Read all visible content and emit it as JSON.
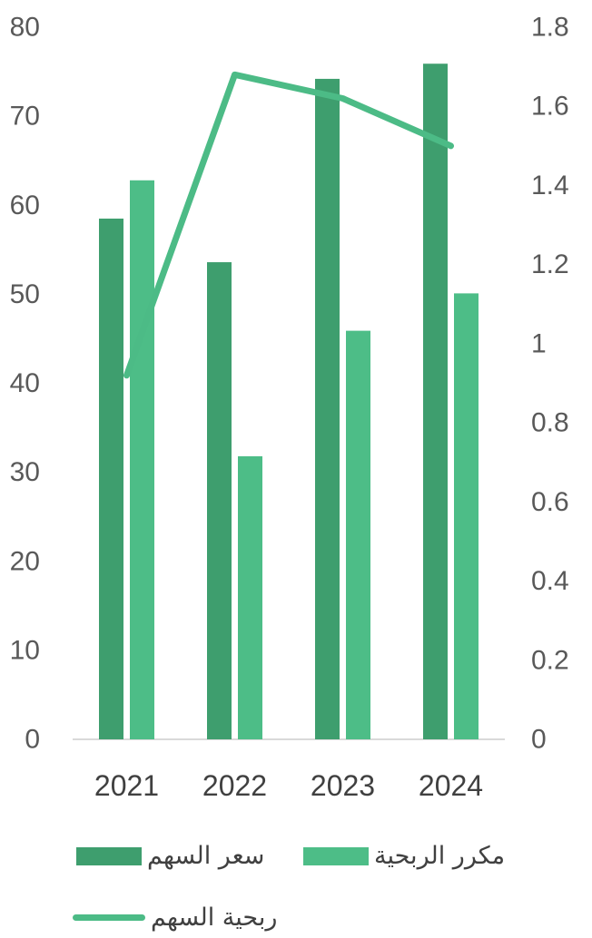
{
  "colors": {
    "price_bar": "#3e9e6e",
    "pe_bar": "#4dbd87",
    "eps_line": "#4cbb86",
    "axis_text": "#595959",
    "category_text": "#404040",
    "baseline": "#d9d9d9"
  },
  "chart_data": {
    "type": "bar",
    "title": "",
    "categories": [
      "2021",
      "2022",
      "2023",
      "2024"
    ],
    "series": [
      {
        "name": "سعر السهم",
        "type": "bar",
        "axis": "left",
        "values": [
          58.5,
          53.6,
          74.2,
          75.9
        ]
      },
      {
        "name": "مكرر الربحية",
        "type": "bar",
        "axis": "left",
        "values": [
          62.8,
          31.8,
          45.9,
          50.1
        ]
      },
      {
        "name": "ربحية السهم",
        "type": "line",
        "axis": "right",
        "values": [
          0.92,
          1.68,
          1.62,
          1.5
        ]
      }
    ],
    "y_left": {
      "min": 0,
      "max": 80,
      "ticks": [
        "0",
        "10",
        "20",
        "30",
        "40",
        "50",
        "60",
        "70",
        "80"
      ]
    },
    "y_right": {
      "min": 0,
      "max": 1.8,
      "ticks": [
        "0",
        "0.2",
        "0.4",
        "0.6",
        "0.8",
        "1",
        "1.2",
        "1.4",
        "1.6",
        "1.8"
      ]
    },
    "grid": false,
    "legend_position": "bottom"
  },
  "legend": {
    "price_label": "سعر السهم",
    "pe_label": "مكرر الربحية",
    "eps_label": "ربحية السهم"
  }
}
